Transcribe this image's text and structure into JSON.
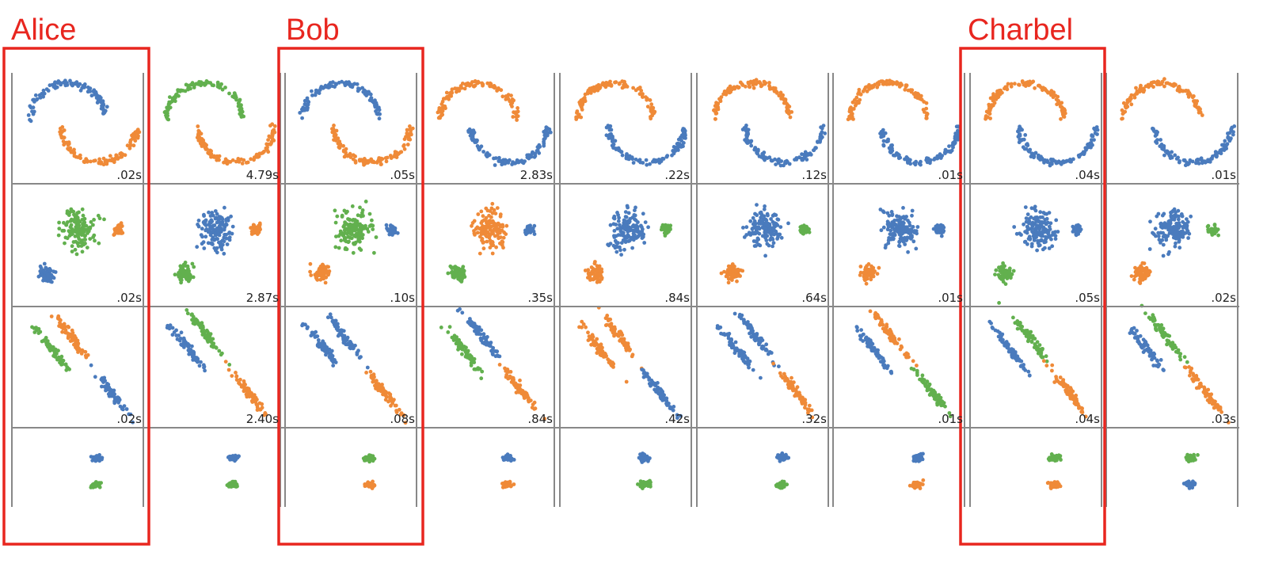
{
  "labels": [
    "Alice",
    "Bob",
    "Charbel"
  ],
  "timings": [
    [
      ".02s",
      "4.79s",
      ".05s",
      "2.83s",
      ".22s",
      ".12s",
      ".01s",
      ".04s",
      ".01s"
    ],
    [
      ".02s",
      "2.87s",
      ".10s",
      ".35s",
      ".84s",
      ".64s",
      ".01s",
      ".05s",
      ".02s"
    ],
    [
      ".02s",
      "2.40s",
      ".08s",
      ".84s",
      ".42s",
      ".32s",
      ".01s",
      ".04s",
      ".03s"
    ]
  ]
}
